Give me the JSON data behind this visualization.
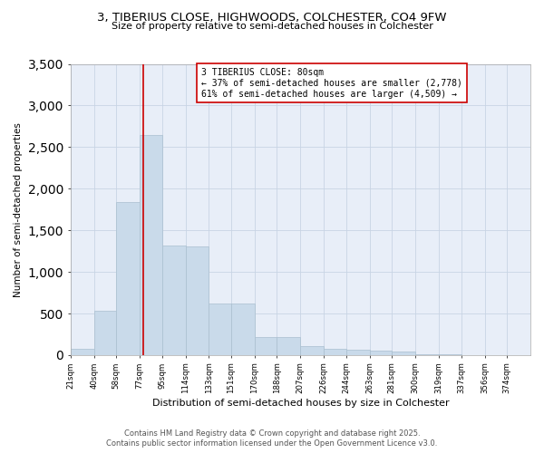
{
  "title_line1": "3, TIBERIUS CLOSE, HIGHWOODS, COLCHESTER, CO4 9FW",
  "title_line2": "Size of property relative to semi-detached houses in Colchester",
  "xlabel": "Distribution of semi-detached houses by size in Colchester",
  "ylabel": "Number of semi-detached properties",
  "footer_line1": "Contains HM Land Registry data © Crown copyright and database right 2025.",
  "footer_line2": "Contains public sector information licensed under the Open Government Licence v3.0.",
  "annotation_title": "3 TIBERIUS CLOSE: 80sqm",
  "annotation_line1": "← 37% of semi-detached houses are smaller (2,778)",
  "annotation_line2": "61% of semi-detached houses are larger (4,509) →",
  "property_size_sqm": 80,
  "bar_color": "#c9daea",
  "bar_edgecolor": "#aabfcf",
  "vline_color": "#cc0000",
  "annotation_box_edgecolor": "#cc0000",
  "annotation_box_facecolor": "#ffffff",
  "background_color": "#ffffff",
  "plot_bg_color": "#e8eef8",
  "grid_color": "#c8d4e4",
  "bins": [
    21,
    40,
    58,
    77,
    95,
    114,
    133,
    151,
    170,
    188,
    207,
    226,
    244,
    263,
    281,
    300,
    319,
    337,
    356,
    374,
    393
  ],
  "counts": [
    75,
    530,
    1840,
    2650,
    1320,
    1310,
    625,
    625,
    220,
    215,
    110,
    75,
    60,
    55,
    45,
    15,
    5,
    2,
    1,
    1
  ],
  "ylim": [
    0,
    3500
  ],
  "yticks": [
    0,
    500,
    1000,
    1500,
    2000,
    2500,
    3000,
    3500
  ],
  "figsize": [
    6.0,
    5.0
  ],
  "dpi": 100
}
